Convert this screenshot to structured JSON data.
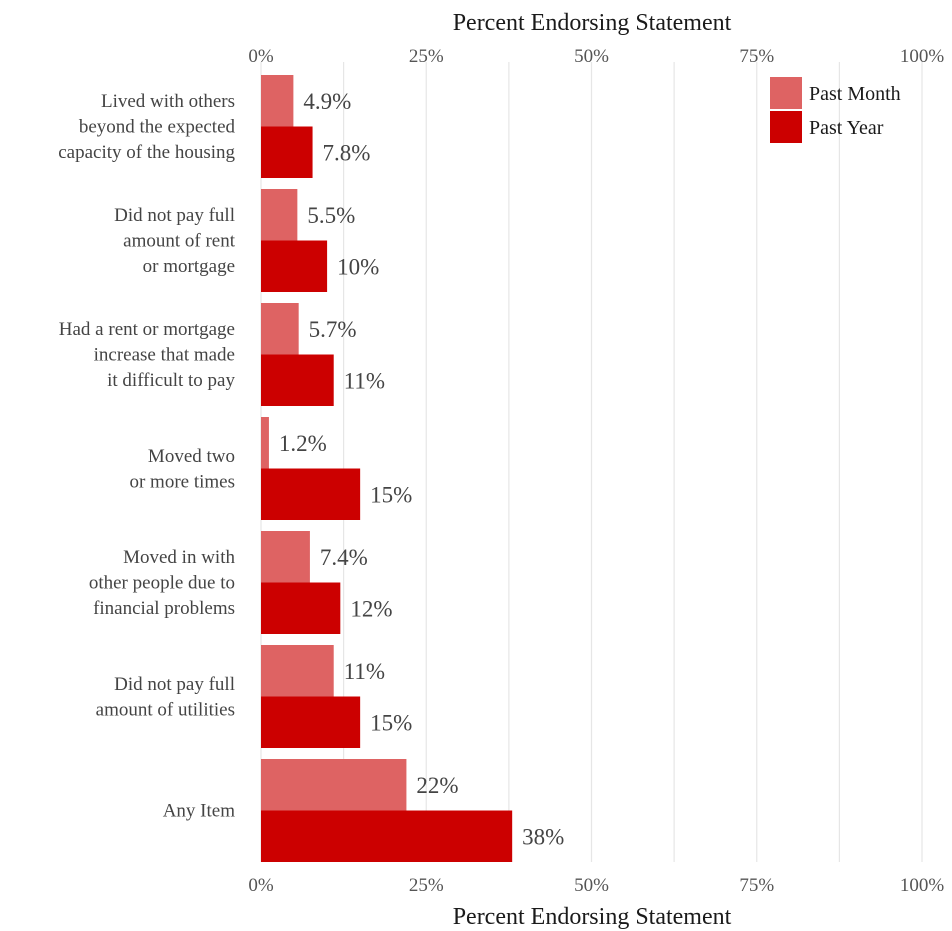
{
  "chart_data": {
    "type": "bar",
    "orientation": "horizontal",
    "xlabel": "Percent Endorsing Statement",
    "xlim": [
      0,
      100
    ],
    "x_ticks": [
      "0%",
      "25%",
      "50%",
      "75%",
      "100%"
    ],
    "x_tick_values": [
      0,
      25,
      50,
      75,
      100
    ],
    "grid": true,
    "legend_position": "top-right",
    "categories": [
      [
        "Lived with others",
        "beyond the expected",
        "capacity of the housing"
      ],
      [
        "Did not pay full",
        "amount of rent",
        "or mortgage"
      ],
      [
        "Had a rent or mortgage",
        "increase that made",
        "it difficult to pay"
      ],
      [
        "Moved two",
        "or more times"
      ],
      [
        "Moved in with",
        "other people due to",
        "financial problems"
      ],
      [
        "Did not pay full",
        "amount of utilities"
      ],
      [
        "Any Item"
      ]
    ],
    "series": [
      {
        "name": "Past Month",
        "color": "#de6363",
        "values": [
          4.9,
          5.5,
          5.7,
          1.2,
          7.4,
          11,
          22
        ],
        "labels": [
          "4.9%",
          "5.5%",
          "5.7%",
          "1.2%",
          "7.4%",
          "11%",
          "22%"
        ]
      },
      {
        "name": "Past Year",
        "color": "#cc0000",
        "values": [
          7.8,
          10,
          11,
          15,
          12,
          15,
          38
        ],
        "labels": [
          "7.8%",
          "10%",
          "11%",
          "15%",
          "12%",
          "15%",
          "38%"
        ]
      }
    ]
  }
}
